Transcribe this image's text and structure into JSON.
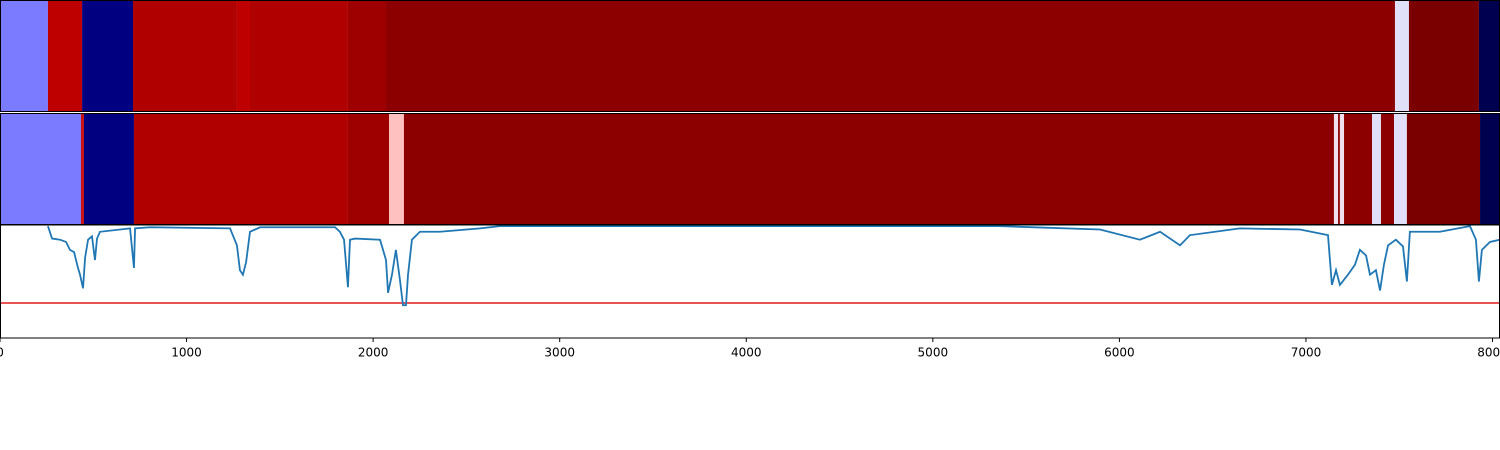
{
  "chart_data": {
    "type": "segments_line",
    "xlim": [
      0,
      8040
    ],
    "xticks": [
      0,
      1000,
      2000,
      3000,
      4000,
      5000,
      6000,
      7000,
      8000
    ],
    "bands": [
      {
        "segments": [
          {
            "start": 0,
            "end": 257,
            "color": "#7b7bff"
          },
          {
            "start": 257,
            "end": 440,
            "color": "#bf0000"
          },
          {
            "start": 440,
            "end": 713,
            "color": "#000080"
          },
          {
            "start": 713,
            "end": 1270,
            "color": "#b00000"
          },
          {
            "start": 1270,
            "end": 1340,
            "color": "#bf0000"
          },
          {
            "start": 1340,
            "end": 1865,
            "color": "#b00000"
          },
          {
            "start": 1865,
            "end": 2069,
            "color": "#9e0000"
          },
          {
            "start": 2069,
            "end": 7477,
            "color": "#8c0000"
          },
          {
            "start": 7477,
            "end": 7552,
            "color": "#e0e0f8"
          },
          {
            "start": 7552,
            "end": 7927,
            "color": "#7a0000"
          },
          {
            "start": 7927,
            "end": 8040,
            "color": "#000050"
          }
        ]
      },
      {
        "segments": [
          {
            "start": 0,
            "end": 434,
            "color": "#7b7bff"
          },
          {
            "start": 434,
            "end": 450,
            "color": "#cc1010"
          },
          {
            "start": 450,
            "end": 718,
            "color": "#000080"
          },
          {
            "start": 718,
            "end": 1865,
            "color": "#b00000"
          },
          {
            "start": 1865,
            "end": 2085,
            "color": "#9e0000"
          },
          {
            "start": 2085,
            "end": 2165,
            "color": "#ffc0c0"
          },
          {
            "start": 2165,
            "end": 7150,
            "color": "#8c0000"
          },
          {
            "start": 7150,
            "end": 7172,
            "color": "#f0e0f0"
          },
          {
            "start": 7172,
            "end": 7182,
            "color": "#8c0000"
          },
          {
            "start": 7182,
            "end": 7204,
            "color": "#f0e0f0"
          },
          {
            "start": 7204,
            "end": 7354,
            "color": "#8c0000"
          },
          {
            "start": 7354,
            "end": 7402,
            "color": "#e0e0f8"
          },
          {
            "start": 7402,
            "end": 7472,
            "color": "#8c0000"
          },
          {
            "start": 7472,
            "end": 7541,
            "color": "#e0e0f8"
          },
          {
            "start": 7541,
            "end": 7933,
            "color": "#7a0000"
          },
          {
            "start": 7933,
            "end": 8040,
            "color": "#000050"
          }
        ]
      }
    ],
    "ylim": [
      0,
      1
    ],
    "threshold": 0.31,
    "threshold_color": "#e41a1c",
    "series": [
      {
        "color": "#1f77b4",
        "x": [
          257,
          279,
          322,
          354,
          375,
          397,
          418,
          429,
          445,
          456,
          472,
          493,
          509,
          520,
          536,
          697,
          718,
          724,
          804,
          1233,
          1270,
          1286,
          1302,
          1319,
          1340,
          1394,
          1796,
          1822,
          1844,
          1855,
          1865,
          1876,
          1903,
          2037,
          2069,
          2080,
          2101,
          2122,
          2144,
          2160,
          2176,
          2187,
          2208,
          2251,
          2358,
          2573,
          2680,
          5360,
          5896,
          6110,
          6218,
          6325,
          6378,
          6646,
          6968,
          7118,
          7139,
          7161,
          7182,
          7225,
          7263,
          7289,
          7322,
          7343,
          7375,
          7397,
          7418,
          7440,
          7482,
          7520,
          7541,
          7557,
          7718,
          7879,
          7911,
          7927,
          7943,
          7986,
          8040
        ],
        "values": [
          0.99,
          0.88,
          0.87,
          0.85,
          0.78,
          0.76,
          0.62,
          0.56,
          0.44,
          0.71,
          0.87,
          0.9,
          0.69,
          0.88,
          0.94,
          0.97,
          0.62,
          0.97,
          0.98,
          0.97,
          0.82,
          0.6,
          0.56,
          0.67,
          0.94,
          0.98,
          0.98,
          0.94,
          0.87,
          0.65,
          0.45,
          0.87,
          0.88,
          0.87,
          0.69,
          0.4,
          0.56,
          0.78,
          0.51,
          0.29,
          0.29,
          0.56,
          0.87,
          0.94,
          0.94,
          0.97,
          0.99,
          0.99,
          0.96,
          0.87,
          0.94,
          0.82,
          0.91,
          0.97,
          0.96,
          0.91,
          0.47,
          0.6,
          0.47,
          0.56,
          0.65,
          0.78,
          0.73,
          0.56,
          0.6,
          0.42,
          0.65,
          0.82,
          0.87,
          0.81,
          0.5,
          0.94,
          0.94,
          0.99,
          0.87,
          0.5,
          0.78,
          0.85,
          0.87
        ]
      }
    ]
  }
}
